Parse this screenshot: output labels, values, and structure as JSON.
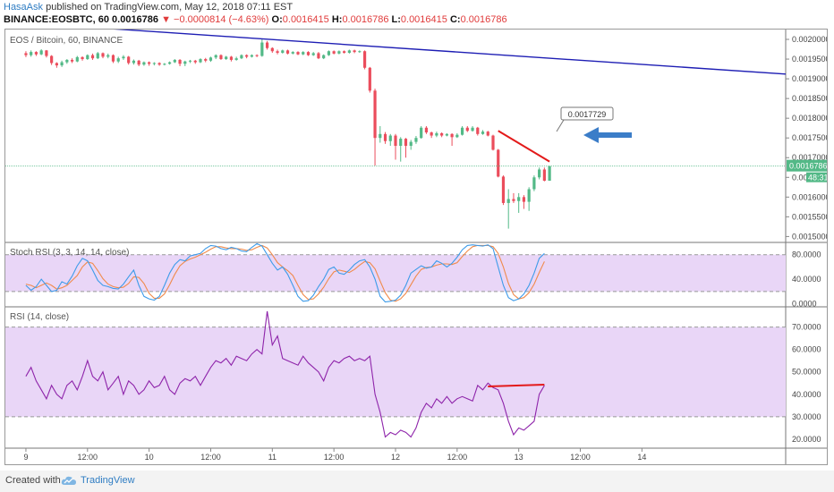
{
  "header": {
    "user": "HasaAsk",
    "published": "published on TradingView.com, May 12, 2018 07:11 EST",
    "symbol_line": "BINANCE:EOSBTC, 60",
    "last": "0.0016786",
    "change": "▼ −0.0000814 (−4.63%)",
    "o_label": "O:",
    "o": "0.0016415",
    "h_label": "H:",
    "h": "0.0016786",
    "l_label": "L:",
    "l": "0.0016415",
    "c_label": "C:",
    "c": "0.0016786"
  },
  "footer": {
    "created_with": "Created with",
    "brand": "TradingView"
  },
  "colors": {
    "up": "#53b987",
    "down": "#eb4d5c",
    "trend_blue": "#1e1eb4",
    "trend_red": "#e31a1a",
    "stoch_k": "#3d9be9",
    "stoch_d": "#f08a4b",
    "rsi": "#8e24aa",
    "band_fill": "#e9d6f7",
    "arrow": "#3b7dc8"
  },
  "chart_data": [
    {
      "type": "candlestick",
      "title": "EOS / Bitcoin, 60, BINANCE",
      "x_tick_labels": [
        "9",
        "12:00",
        "10",
        "12:00",
        "11",
        "12:00",
        "12",
        "12:00",
        "13",
        "12:00",
        "14"
      ],
      "y_tick_labels": [
        "0.0015000",
        "0.0015500",
        "0.0016000",
        "0.0016500",
        "0.0017000",
        "0.0017500",
        "0.0018000",
        "0.0018500",
        "0.0019000",
        "0.0019500",
        "0.0020000"
      ],
      "ylim": [
        0.001485,
        0.002025
      ],
      "xlim_bars": [
        -4,
        148
      ],
      "bars_per_day": 24,
      "day_start_bars": [
        0,
        24,
        48,
        72,
        96,
        120,
        144
      ],
      "candles": [
        [
          0.001965,
          0.00196,
          0.00197,
          0.001955
        ],
        [
          0.00196,
          0.001968,
          0.001972,
          0.001956
        ],
        [
          0.001968,
          0.001962,
          0.00197,
          0.001958
        ],
        [
          0.001962,
          0.001972,
          0.001975,
          0.00196
        ],
        [
          0.001972,
          0.001958,
          0.001973,
          0.001954
        ],
        [
          0.001958,
          0.00194,
          0.00196,
          0.001935
        ],
        [
          0.00194,
          0.001934,
          0.001942,
          0.001928
        ],
        [
          0.001934,
          0.001942,
          0.001946,
          0.00193
        ],
        [
          0.001942,
          0.001948,
          0.00195,
          0.001938
        ],
        [
          0.001948,
          0.001944,
          0.001952,
          0.00194
        ],
        [
          0.001944,
          0.001955,
          0.001958,
          0.001942
        ],
        [
          0.001955,
          0.00195,
          0.001957,
          0.001946
        ],
        [
          0.00195,
          0.00196,
          0.001962,
          0.001948
        ],
        [
          0.00196,
          0.001952,
          0.001964,
          0.001948
        ],
        [
          0.001952,
          0.001965,
          0.001968,
          0.00195
        ],
        [
          0.001965,
          0.001956,
          0.001967,
          0.001952
        ],
        [
          0.001956,
          0.00196,
          0.001964,
          0.001952
        ],
        [
          0.00196,
          0.001944,
          0.001962,
          0.00194
        ],
        [
          0.001944,
          0.001952,
          0.001956,
          0.00194
        ],
        [
          0.001952,
          0.001956,
          0.00196,
          0.001948
        ],
        [
          0.001956,
          0.00194,
          0.001958,
          0.001936
        ],
        [
          0.00194,
          0.001946,
          0.001949,
          0.001936
        ],
        [
          0.001946,
          0.001936,
          0.001948,
          0.001932
        ],
        [
          0.001936,
          0.001942,
          0.001944,
          0.001933
        ],
        [
          0.001942,
          0.001938,
          0.001944,
          0.001933
        ],
        [
          0.001938,
          0.00194,
          0.001942,
          0.001934
        ],
        [
          0.00194,
          0.001936,
          0.001942,
          0.001933
        ],
        [
          0.001936,
          0.001938,
          0.00194,
          0.001934
        ],
        [
          0.001938,
          0.001942,
          0.001944,
          0.001936
        ],
        [
          0.001942,
          0.001948,
          0.00195,
          0.00194
        ],
        [
          0.001948,
          0.001938,
          0.00195,
          0.001932
        ],
        [
          0.001938,
          0.001944,
          0.001946,
          0.001932
        ],
        [
          0.001944,
          0.001946,
          0.001948,
          0.00194
        ],
        [
          0.001946,
          0.001942,
          0.001948,
          0.001938
        ],
        [
          0.001942,
          0.00195,
          0.001952,
          0.00194
        ],
        [
          0.00195,
          0.001946,
          0.001953,
          0.001942
        ],
        [
          0.001946,
          0.001954,
          0.001956,
          0.001943
        ],
        [
          0.001954,
          0.00196,
          0.001962,
          0.00195
        ],
        [
          0.00196,
          0.00195,
          0.001962,
          0.001948
        ],
        [
          0.00195,
          0.001956,
          0.001958,
          0.001948
        ],
        [
          0.001956,
          0.001948,
          0.001958,
          0.001944
        ],
        [
          0.001948,
          0.001952,
          0.001956,
          0.001946
        ],
        [
          0.001952,
          0.00196,
          0.001962,
          0.00195
        ],
        [
          0.00196,
          0.001956,
          0.001962,
          0.001952
        ],
        [
          0.001956,
          0.00196,
          0.001962,
          0.001954
        ],
        [
          0.00196,
          0.001958,
          0.001962,
          0.001955
        ],
        [
          0.001958,
          0.001992,
          0.002,
          0.001956
        ],
        [
          0.001992,
          0.001978,
          0.001996,
          0.001974
        ],
        [
          0.001978,
          0.00197,
          0.00198,
          0.001966
        ],
        [
          0.00197,
          0.001966,
          0.001974,
          0.001962
        ],
        [
          0.001966,
          0.001972,
          0.001974,
          0.001964
        ],
        [
          0.001972,
          0.001964,
          0.001974,
          0.001962
        ],
        [
          0.001964,
          0.001968,
          0.00197,
          0.001962
        ],
        [
          0.001968,
          0.001962,
          0.00197,
          0.00196
        ],
        [
          0.001962,
          0.001968,
          0.00197,
          0.00196
        ],
        [
          0.001968,
          0.00196,
          0.00197,
          0.001958
        ],
        [
          0.00196,
          0.001965,
          0.001968,
          0.001958
        ],
        [
          0.001965,
          0.001952,
          0.001968,
          0.00195
        ],
        [
          0.001952,
          0.00196,
          0.001962,
          0.00195
        ],
        [
          0.00196,
          0.00197,
          0.001972,
          0.001958
        ],
        [
          0.00197,
          0.001964,
          0.001972,
          0.001962
        ],
        [
          0.001964,
          0.00197,
          0.001972,
          0.001962
        ],
        [
          0.00197,
          0.001966,
          0.001972,
          0.001964
        ],
        [
          0.001966,
          0.001972,
          0.001974,
          0.001964
        ],
        [
          0.001972,
          0.001968,
          0.001974,
          0.001965
        ],
        [
          0.001968,
          0.00197,
          0.001972,
          0.001966
        ],
        [
          0.00197,
          0.001928,
          0.001972,
          0.001924
        ],
        [
          0.001928,
          0.00187,
          0.00193,
          0.001865
        ],
        [
          0.00187,
          0.00175,
          0.001875,
          0.00168
        ],
        [
          0.00175,
          0.00176,
          0.00178,
          0.001738
        ],
        [
          0.00176,
          0.001742,
          0.001765,
          0.001735
        ],
        [
          0.001742,
          0.001756,
          0.00176,
          0.00173
        ],
        [
          0.001756,
          0.00173,
          0.00176,
          0.001695
        ],
        [
          0.00173,
          0.001748,
          0.001752,
          0.00169
        ],
        [
          0.001748,
          0.00173,
          0.00175,
          0.0017
        ],
        [
          0.00173,
          0.00174,
          0.001745,
          0.00172
        ],
        [
          0.00174,
          0.00175,
          0.001755,
          0.001735
        ],
        [
          0.00175,
          0.001776,
          0.00178,
          0.001748
        ],
        [
          0.001776,
          0.001764,
          0.00178,
          0.00176
        ],
        [
          0.001764,
          0.001756,
          0.001766,
          0.00175
        ],
        [
          0.001756,
          0.001762,
          0.001766,
          0.001752
        ],
        [
          0.001762,
          0.001756,
          0.001764,
          0.001752
        ],
        [
          0.001756,
          0.00176,
          0.001762,
          0.001754
        ],
        [
          0.00176,
          0.001752,
          0.001762,
          0.00173
        ],
        [
          0.001752,
          0.001758,
          0.001762,
          0.00175
        ],
        [
          0.001758,
          0.001776,
          0.00178,
          0.001756
        ],
        [
          0.001776,
          0.001768,
          0.00178,
          0.001765
        ],
        [
          0.001768,
          0.001776,
          0.00178,
          0.001766
        ],
        [
          0.001776,
          0.00176,
          0.001778,
          0.001756
        ],
        [
          0.00176,
          0.001766,
          0.00177,
          0.001758
        ],
        [
          0.001766,
          0.001756,
          0.001768,
          0.001754
        ],
        [
          0.001756,
          0.00172,
          0.001758,
          0.001718
        ],
        [
          0.00172,
          0.001652,
          0.001722,
          0.00165
        ],
        [
          0.001652,
          0.001585,
          0.001655,
          0.00158
        ],
        [
          0.001585,
          0.001595,
          0.00162,
          0.00152
        ],
        [
          0.001595,
          0.00159,
          0.00161,
          0.001585
        ],
        [
          0.00159,
          0.0016,
          0.00161,
          0.00156
        ],
        [
          0.0016,
          0.001588,
          0.001605,
          0.00157
        ],
        [
          0.001588,
          0.00162,
          0.001625,
          0.001565
        ],
        [
          0.00162,
          0.00165,
          0.001655,
          0.001615
        ],
        [
          0.00165,
          0.00167,
          0.001675,
          0.001645
        ],
        [
          0.00167,
          0.0016415,
          0.001675,
          0.00164
        ],
        [
          0.0016415,
          0.0016786,
          0.0016786,
          0.0016415
        ]
      ],
      "trendlines": [
        {
          "color": "blue",
          "from": [
            -4,
            0.002045
          ],
          "to": [
            148,
            0.001912
          ]
        },
        {
          "color": "red",
          "from": [
            92,
            0.001768
          ],
          "to": [
            102,
            0.00169
          ]
        }
      ],
      "last_price_label": "0.0016786",
      "countdown_label": "48:31",
      "price_callout_label": "0.0017729"
    },
    {
      "type": "line",
      "title": "Stoch RSI (3, 3, 14, 14, close)",
      "ylim": [
        -5,
        100
      ],
      "y_tick_labels": [
        "80.0000",
        "40.0000",
        "0.0000"
      ],
      "band": [
        20,
        80
      ],
      "k_series": [
        30,
        22,
        28,
        40,
        30,
        20,
        22,
        36,
        32,
        45,
        62,
        74,
        70,
        55,
        38,
        30,
        28,
        25,
        24,
        32,
        44,
        55,
        30,
        12,
        8,
        6,
        12,
        30,
        50,
        64,
        72,
        70,
        78,
        80,
        82,
        90,
        95,
        94,
        90,
        88,
        92,
        90,
        86,
        85,
        92,
        98,
        94,
        80,
        66,
        55,
        60,
        48,
        30,
        12,
        4,
        5,
        14,
        28,
        40,
        56,
        60,
        50,
        48,
        55,
        64,
        70,
        72,
        60,
        40,
        12,
        3,
        4,
        6,
        14,
        30,
        50,
        56,
        62,
        58,
        60,
        70,
        66,
        60,
        66,
        76,
        88,
        95,
        96,
        95,
        94,
        96,
        90,
        60,
        30,
        10,
        5,
        8,
        16,
        30,
        50,
        74,
        82
      ],
      "d_series": [
        32,
        30,
        26,
        30,
        34,
        30,
        24,
        26,
        30,
        38,
        46,
        60,
        68,
        66,
        54,
        41,
        32,
        28,
        26,
        27,
        33,
        44,
        43,
        33,
        17,
        9,
        9,
        16,
        31,
        48,
        62,
        69,
        73,
        76,
        80,
        84,
        89,
        93,
        93,
        91,
        90,
        90,
        89,
        87,
        88,
        92,
        95,
        91,
        80,
        67,
        60,
        54,
        46,
        30,
        15,
        7,
        8,
        16,
        27,
        41,
        52,
        55,
        53,
        51,
        56,
        63,
        69,
        67,
        57,
        37,
        18,
        6,
        4,
        8,
        17,
        31,
        45,
        56,
        59,
        60,
        63,
        65,
        65,
        64,
        67,
        77,
        86,
        93,
        95,
        95,
        95,
        93,
        82,
        60,
        33,
        15,
        8,
        10,
        18,
        32,
        51,
        69
      ]
    },
    {
      "type": "line",
      "title": "RSI (14, close)",
      "ylim": [
        16,
        79
      ],
      "y_tick_labels": [
        "70.0000",
        "60.0000",
        "50.0000",
        "40.0000",
        "30.0000",
        "20.0000"
      ],
      "band": [
        30,
        70
      ],
      "series": [
        48,
        52,
        46,
        42,
        38,
        44,
        40,
        38,
        44,
        46,
        42,
        48,
        55,
        48,
        46,
        50,
        42,
        45,
        48,
        40,
        46,
        44,
        40,
        42,
        46,
        43,
        44,
        48,
        42,
        40,
        45,
        47,
        46,
        48,
        44,
        48,
        52,
        55,
        54,
        56,
        53,
        57,
        56,
        55,
        58,
        60,
        58,
        77,
        62,
        66,
        56,
        55,
        54,
        53,
        57,
        54,
        52,
        50,
        46,
        52,
        55,
        54,
        56,
        57,
        55,
        56,
        55,
        57,
        40,
        32,
        21,
        23,
        22,
        24,
        23,
        21,
        25,
        32,
        36,
        34,
        38,
        36,
        39,
        36,
        38,
        39,
        38,
        37,
        44,
        42,
        45,
        43,
        42,
        36,
        28,
        22,
        25,
        24,
        26,
        28,
        40,
        44
      ],
      "trendline": {
        "from": [
          90,
          43.5
        ],
        "to": [
          101,
          44.3
        ]
      }
    }
  ]
}
